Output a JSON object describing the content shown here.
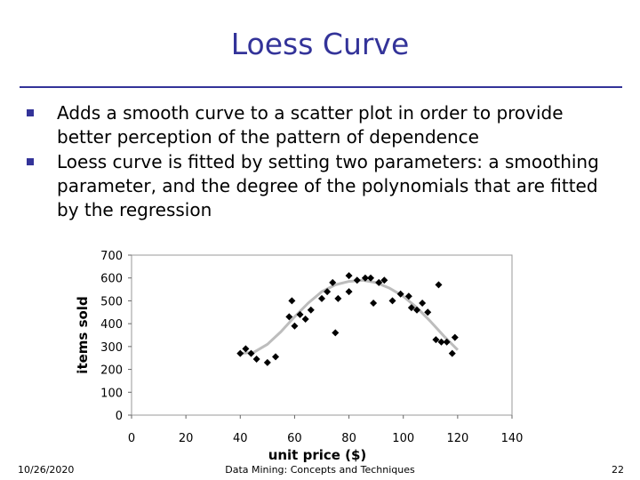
{
  "slide": {
    "title": "Loess Curve",
    "bullets": [
      "Adds a smooth curve to a scatter plot in order to provide better perception of the pattern of dependence",
      "Loess curve is fitted by setting two parameters: a smoothing parameter, and the degree of the polynomials that are fitted by the regression"
    ],
    "footer": {
      "date": "10/26/2020",
      "center": "Data Mining: Concepts and Techniques",
      "page": "22"
    }
  },
  "colors": {
    "accent": "#333399",
    "curve": "#bdbdbd",
    "points": "#000000"
  },
  "chart_data": {
    "type": "scatter",
    "xlabel": "unit price ($)",
    "ylabel": "items sold",
    "xlim": [
      0,
      140
    ],
    "ylim": [
      0,
      700
    ],
    "xticks": [
      0,
      20,
      40,
      60,
      80,
      100,
      120,
      140
    ],
    "yticks": [
      0,
      100,
      200,
      300,
      400,
      500,
      600,
      700
    ],
    "grid": false,
    "points": [
      {
        "x": 40,
        "y": 270
      },
      {
        "x": 42,
        "y": 290
      },
      {
        "x": 44,
        "y": 270
      },
      {
        "x": 46,
        "y": 245
      },
      {
        "x": 50,
        "y": 230
      },
      {
        "x": 53,
        "y": 255
      },
      {
        "x": 58,
        "y": 430
      },
      {
        "x": 59,
        "y": 500
      },
      {
        "x": 60,
        "y": 390
      },
      {
        "x": 62,
        "y": 440
      },
      {
        "x": 64,
        "y": 420
      },
      {
        "x": 66,
        "y": 460
      },
      {
        "x": 70,
        "y": 510
      },
      {
        "x": 72,
        "y": 540
      },
      {
        "x": 74,
        "y": 580
      },
      {
        "x": 75,
        "y": 360
      },
      {
        "x": 76,
        "y": 510
      },
      {
        "x": 80,
        "y": 540
      },
      {
        "x": 80,
        "y": 610
      },
      {
        "x": 83,
        "y": 590
      },
      {
        "x": 86,
        "y": 600
      },
      {
        "x": 88,
        "y": 600
      },
      {
        "x": 89,
        "y": 490
      },
      {
        "x": 91,
        "y": 580
      },
      {
        "x": 93,
        "y": 590
      },
      {
        "x": 96,
        "y": 500
      },
      {
        "x": 99,
        "y": 530
      },
      {
        "x": 102,
        "y": 520
      },
      {
        "x": 103,
        "y": 470
      },
      {
        "x": 105,
        "y": 460
      },
      {
        "x": 107,
        "y": 490
      },
      {
        "x": 109,
        "y": 450
      },
      {
        "x": 112,
        "y": 330
      },
      {
        "x": 113,
        "y": 570
      },
      {
        "x": 114,
        "y": 320
      },
      {
        "x": 116,
        "y": 320
      },
      {
        "x": 118,
        "y": 270
      },
      {
        "x": 119,
        "y": 340
      }
    ],
    "loess_curve": [
      {
        "x": 40,
        "y": 270
      },
      {
        "x": 45,
        "y": 275
      },
      {
        "x": 50,
        "y": 310
      },
      {
        "x": 55,
        "y": 365
      },
      {
        "x": 60,
        "y": 430
      },
      {
        "x": 65,
        "y": 490
      },
      {
        "x": 70,
        "y": 540
      },
      {
        "x": 75,
        "y": 570
      },
      {
        "x": 80,
        "y": 585
      },
      {
        "x": 85,
        "y": 590
      },
      {
        "x": 90,
        "y": 580
      },
      {
        "x": 95,
        "y": 555
      },
      {
        "x": 100,
        "y": 520
      },
      {
        "x": 105,
        "y": 470
      },
      {
        "x": 110,
        "y": 410
      },
      {
        "x": 115,
        "y": 345
      },
      {
        "x": 120,
        "y": 285
      }
    ]
  }
}
